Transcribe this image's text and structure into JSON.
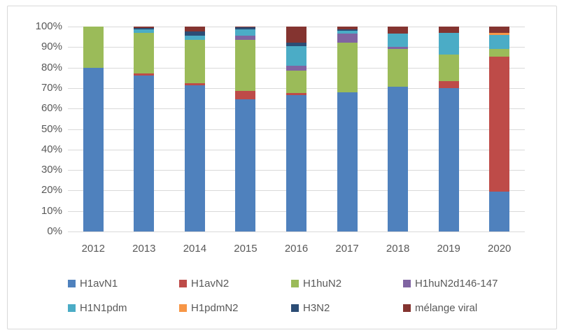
{
  "chart_data": {
    "type": "bar",
    "stacked": true,
    "percent": true,
    "title": "",
    "xlabel": "",
    "ylabel": "",
    "categories": [
      "2012",
      "2013",
      "2014",
      "2015",
      "2016",
      "2017",
      "2018",
      "2019",
      "2020"
    ],
    "series": [
      {
        "name": "H1avN1",
        "color": "#4F81BD",
        "values": [
          80,
          76,
          71.5,
          64.5,
          66.5,
          68,
          70.5,
          70,
          19.5
        ]
      },
      {
        "name": "H1avN2",
        "color": "#BE4B48",
        "values": [
          0,
          1,
          1,
          4,
          1,
          0,
          0,
          3.5,
          66
        ]
      },
      {
        "name": "H1huN2",
        "color": "#9BBB59",
        "values": [
          20,
          20,
          21,
          25,
          11,
          24,
          18.5,
          13,
          3.5
        ]
      },
      {
        "name": "H1huN2d146-147",
        "color": "#8064A2",
        "values": [
          0,
          0,
          0,
          2,
          2.5,
          4.5,
          1,
          0,
          0
        ]
      },
      {
        "name": "H1N1pdm",
        "color": "#4BACC6",
        "values": [
          0,
          1.5,
          2,
          3,
          9.5,
          1.5,
          6.5,
          10.5,
          7
        ]
      },
      {
        "name": "H1pdmN2",
        "color": "#F79646",
        "values": [
          0,
          0,
          0,
          0,
          0,
          0,
          0,
          0,
          1
        ]
      },
      {
        "name": "H3N2",
        "color": "#2C4D75",
        "values": [
          0,
          1,
          2,
          1,
          1.5,
          0.5,
          0,
          0,
          0
        ]
      },
      {
        "name": "mélange viral",
        "color": "#843430",
        "values": [
          0,
          0.5,
          2.5,
          0.5,
          8,
          1.5,
          3.5,
          3,
          3
        ]
      }
    ],
    "y_ticks": [
      "0%",
      "10%",
      "20%",
      "30%",
      "40%",
      "50%",
      "60%",
      "70%",
      "80%",
      "90%",
      "100%"
    ],
    "ylim": [
      0,
      100
    ],
    "grid": true,
    "legend_position": "bottom",
    "legend_rows": 2,
    "legend_columns": 4
  },
  "style": {
    "tick_color": "#595959",
    "gridline_color": "#d9d9d9",
    "frame_border_color": "#d8d8d8",
    "background": "#ffffff"
  }
}
